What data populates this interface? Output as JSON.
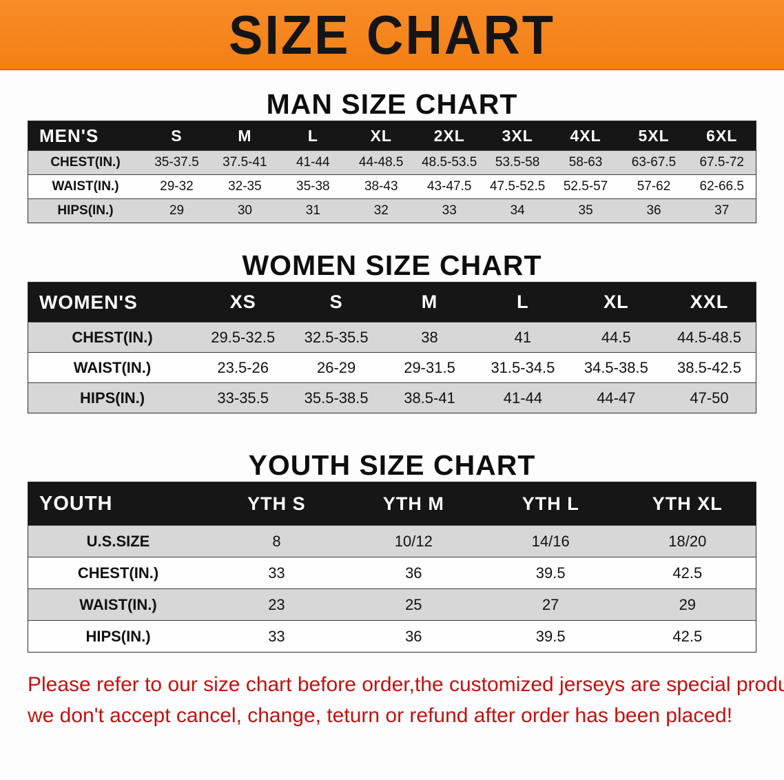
{
  "banner": {
    "title": "SIZE CHART"
  },
  "colors": {
    "banner_bg": "#f5821f",
    "table_header_bg": "#161616",
    "row_stripe": "#d7d7d7",
    "note_text": "#c11111"
  },
  "chart_data": [
    {
      "type": "table",
      "heading": "MAN SIZE CHART",
      "columns": [
        "MEN'S",
        "S",
        "M",
        "L",
        "XL",
        "2XL",
        "3XL",
        "4XL",
        "5XL",
        "6XL"
      ],
      "rows": [
        [
          "CHEST(IN.)",
          "35-37.5",
          "37.5-41",
          "41-44",
          "44-48.5",
          "48.5-53.5",
          "53.5-58",
          "58-63",
          "63-67.5",
          "67.5-72"
        ],
        [
          "WAIST(IN.)",
          "29-32",
          "32-35",
          "35-38",
          "38-43",
          "43-47.5",
          "47.5-52.5",
          "52.5-57",
          "57-62",
          "62-66.5"
        ],
        [
          "HIPS(IN.)",
          "29",
          "30",
          "31",
          "32",
          "33",
          "34",
          "35",
          "36",
          "37"
        ]
      ]
    },
    {
      "type": "table",
      "heading": "WOMEN SIZE CHART",
      "columns": [
        "WOMEN'S",
        "XS",
        "S",
        "M",
        "L",
        "XL",
        "XXL"
      ],
      "rows": [
        [
          "CHEST(IN.)",
          "29.5-32.5",
          "32.5-35.5",
          "38",
          "41",
          "44.5",
          "44.5-48.5"
        ],
        [
          "WAIST(IN.)",
          "23.5-26",
          "26-29",
          "29-31.5",
          "31.5-34.5",
          "34.5-38.5",
          "38.5-42.5"
        ],
        [
          "HIPS(IN.)",
          "33-35.5",
          "35.5-38.5",
          "38.5-41",
          "41-44",
          "44-47",
          "47-50"
        ]
      ]
    },
    {
      "type": "table",
      "heading": "YOUTH SIZE CHART",
      "columns": [
        "YOUTH",
        "YTH S",
        "YTH M",
        "YTH L",
        "YTH XL"
      ],
      "rows": [
        [
          "U.S.SIZE",
          "8",
          "10/12",
          "14/16",
          "18/20"
        ],
        [
          "CHEST(IN.)",
          "33",
          "36",
          "39.5",
          "42.5"
        ],
        [
          "WAIST(IN.)",
          "23",
          "25",
          "27",
          "29"
        ],
        [
          "HIPS(IN.)",
          "33",
          "36",
          "39.5",
          "42.5"
        ]
      ]
    }
  ],
  "note": {
    "line1": "Please refer to our size chart before order,the customized jerseys are special products,",
    "line2": "we don't accept cancel, change, teturn or refund after order has been placed!"
  }
}
